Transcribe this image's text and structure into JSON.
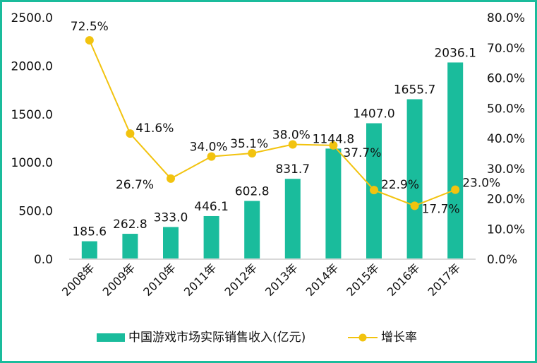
{
  "chart_data": {
    "type": "bar+line",
    "categories": [
      "2008年",
      "2009年",
      "2010年",
      "2011年",
      "2012年",
      "2013年",
      "2014年",
      "2015年",
      "2016年",
      "2017年"
    ],
    "series": [
      {
        "name": "中国游戏市场实际销售收入(亿元)",
        "type": "bar",
        "axis": "left",
        "values": [
          185.6,
          262.8,
          333.0,
          446.1,
          602.8,
          831.7,
          1144.8,
          1407.0,
          1655.7,
          2036.1
        ],
        "labels": [
          "185.6",
          "262.8",
          "333.0",
          "446.1",
          "602.8",
          "831.7",
          "1144.8",
          "1407.0",
          "1655.7",
          "2036.1"
        ],
        "color": "#1ABC9C"
      },
      {
        "name": "增长率",
        "type": "line",
        "axis": "right",
        "values": [
          72.5,
          41.6,
          26.7,
          34.0,
          35.1,
          38.0,
          37.7,
          22.9,
          17.7,
          23.0
        ],
        "labels": [
          "72.5%",
          "41.6%",
          "26.7%",
          "34.0%",
          "35.1%",
          "38.0%",
          "37.7%",
          "22.9%",
          "17.7%",
          "23.0%"
        ],
        "color": "#F2C30F"
      }
    ],
    "left_axis": {
      "ylim": [
        0,
        2500
      ],
      "ticks": [
        "0.0",
        "500.0",
        "1000.0",
        "1500.0",
        "2000.0",
        "2500.0"
      ]
    },
    "right_axis": {
      "ylim": [
        0,
        80
      ],
      "ticks": [
        "0.0%",
        "10.0%",
        "20.0%",
        "30.0%",
        "40.0%",
        "50.0%",
        "60.0%",
        "70.0%",
        "80.0%"
      ]
    },
    "grid": false,
    "legend_position": "bottom",
    "border_color": "#1ABC9C"
  }
}
